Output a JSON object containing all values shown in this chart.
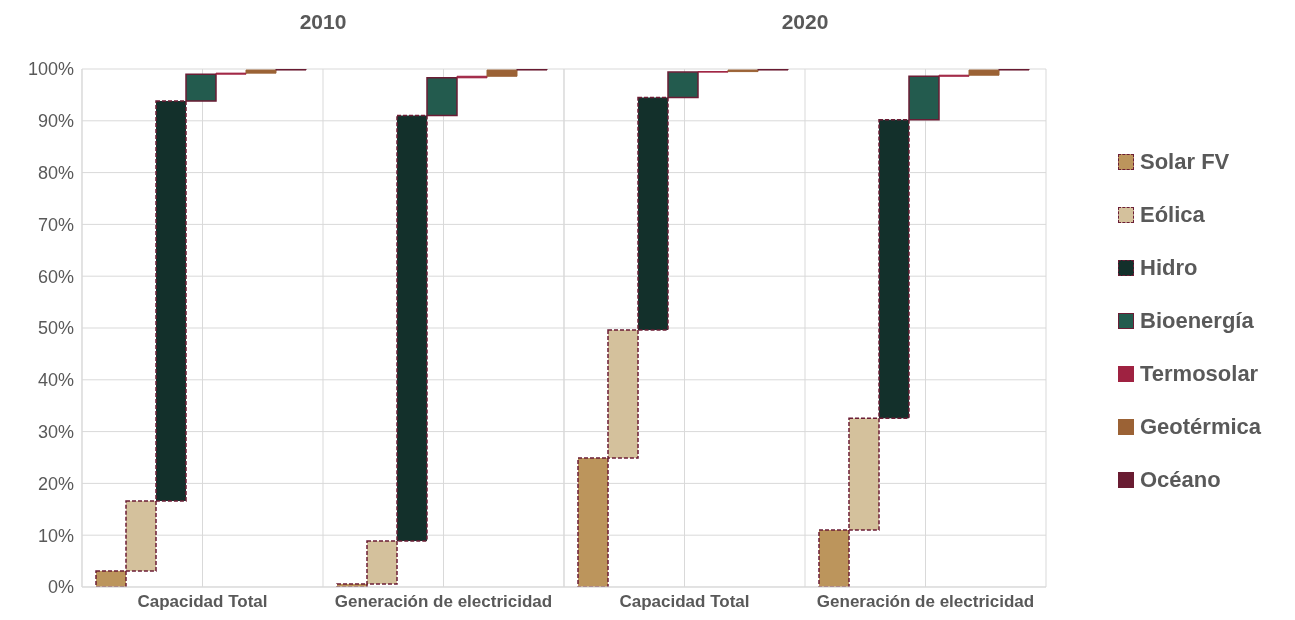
{
  "chart_data": [
    {
      "type": "bar",
      "title": "2010",
      "categories": [
        "Capacidad Total",
        "Generación de electricidad"
      ],
      "series": [
        {
          "color": "#bc955c",
          "values": [
            3.1,
            0.6
          ],
          "base": [
            0,
            0
          ],
          "line_style": "dashed"
        },
        {
          "color": "#d4c19c",
          "values": [
            13.5,
            8.3
          ],
          "base": [
            3.1,
            0.6
          ],
          "line_style": "dashed"
        },
        {
          "color": "#13302b",
          "values": [
            77.2,
            82.1
          ],
          "base": [
            16.6,
            8.9
          ],
          "line_style": "dashed"
        },
        {
          "color": "#235b4e",
          "values": [
            5.2,
            7.3
          ],
          "base": [
            93.8,
            91.0
          ],
          "line_style": "solid"
        },
        {
          "color": "#9f2241",
          "values": [
            0.2,
            0.3
          ],
          "base": [
            99.0,
            98.3
          ]
        },
        {
          "color": "#9b6235",
          "values": [
            0.6,
            1.2
          ],
          "base": [
            99.2,
            98.6
          ]
        },
        {
          "color": "#691c32",
          "values": [
            0.2,
            0.2
          ],
          "base": [
            99.8,
            99.8
          ]
        }
      ],
      "ylim": [
        0,
        100
      ],
      "yticks": [
        {
          "value": 0,
          "label": "0%"
        },
        {
          "value": 10,
          "label": "10%"
        },
        {
          "value": 20,
          "label": "20%"
        },
        {
          "value": 30,
          "label": "30%"
        },
        {
          "value": 40,
          "label": "40%"
        },
        {
          "value": 50,
          "label": "50%"
        },
        {
          "value": 60,
          "label": "60%"
        },
        {
          "value": 70,
          "label": "70%"
        },
        {
          "value": 80,
          "label": "80%"
        },
        {
          "value": 90,
          "label": "90%"
        },
        {
          "value": 100,
          "label": "100%"
        }
      ],
      "grid": true
    },
    {
      "type": "bar",
      "title": "2020",
      "categories": [
        "Capacidad Total",
        "Generación de electricidad"
      ],
      "series": [
        {
          "name": "Solar FV",
          "color": "#bc955c",
          "values": [
            24.9,
            11.0
          ],
          "base": [
            0,
            0
          ],
          "line_style": "dashed"
        },
        {
          "name": "Eólica",
          "color": "#d4c19c",
          "values": [
            24.7,
            21.6
          ],
          "base": [
            24.9,
            11.0
          ],
          "line_style": "dashed"
        },
        {
          "name": "Hidro",
          "color": "#13302b",
          "values": [
            44.9,
            57.6
          ],
          "base": [
            49.6,
            32.6
          ],
          "line_style": "dashed"
        },
        {
          "name": "Bioenergía",
          "color": "#235b4e",
          "values": [
            4.9,
            8.4
          ],
          "base": [
            94.5,
            90.2
          ],
          "line_style": "solid"
        },
        {
          "name": "Termosolar",
          "color": "#9f2241",
          "values": [
            0.1,
            0.2
          ],
          "base": [
            99.4,
            98.6
          ]
        },
        {
          "name": "Geotérmica",
          "color": "#9b6235",
          "values": [
            0.3,
            1.0
          ],
          "base": [
            99.5,
            98.8
          ]
        },
        {
          "name": "Océano",
          "color": "#691c32",
          "values": [
            0.2,
            0.2
          ],
          "base": [
            99.8,
            99.8
          ]
        }
      ],
      "ylim": [
        0,
        100
      ],
      "yticks": [
        0,
        10,
        20,
        30,
        40,
        50,
        60,
        70,
        80,
        90,
        100
      ],
      "grid": true,
      "tick_labels": "x",
      "legend": "right"
    }
  ]
}
